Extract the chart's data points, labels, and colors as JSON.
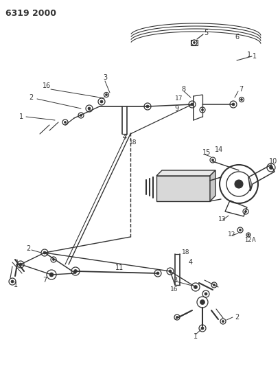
{
  "title": "6319 2000",
  "bg_color": "#ffffff",
  "lc": "#333333",
  "fig_width": 4.08,
  "fig_height": 5.33,
  "dpi": 100
}
